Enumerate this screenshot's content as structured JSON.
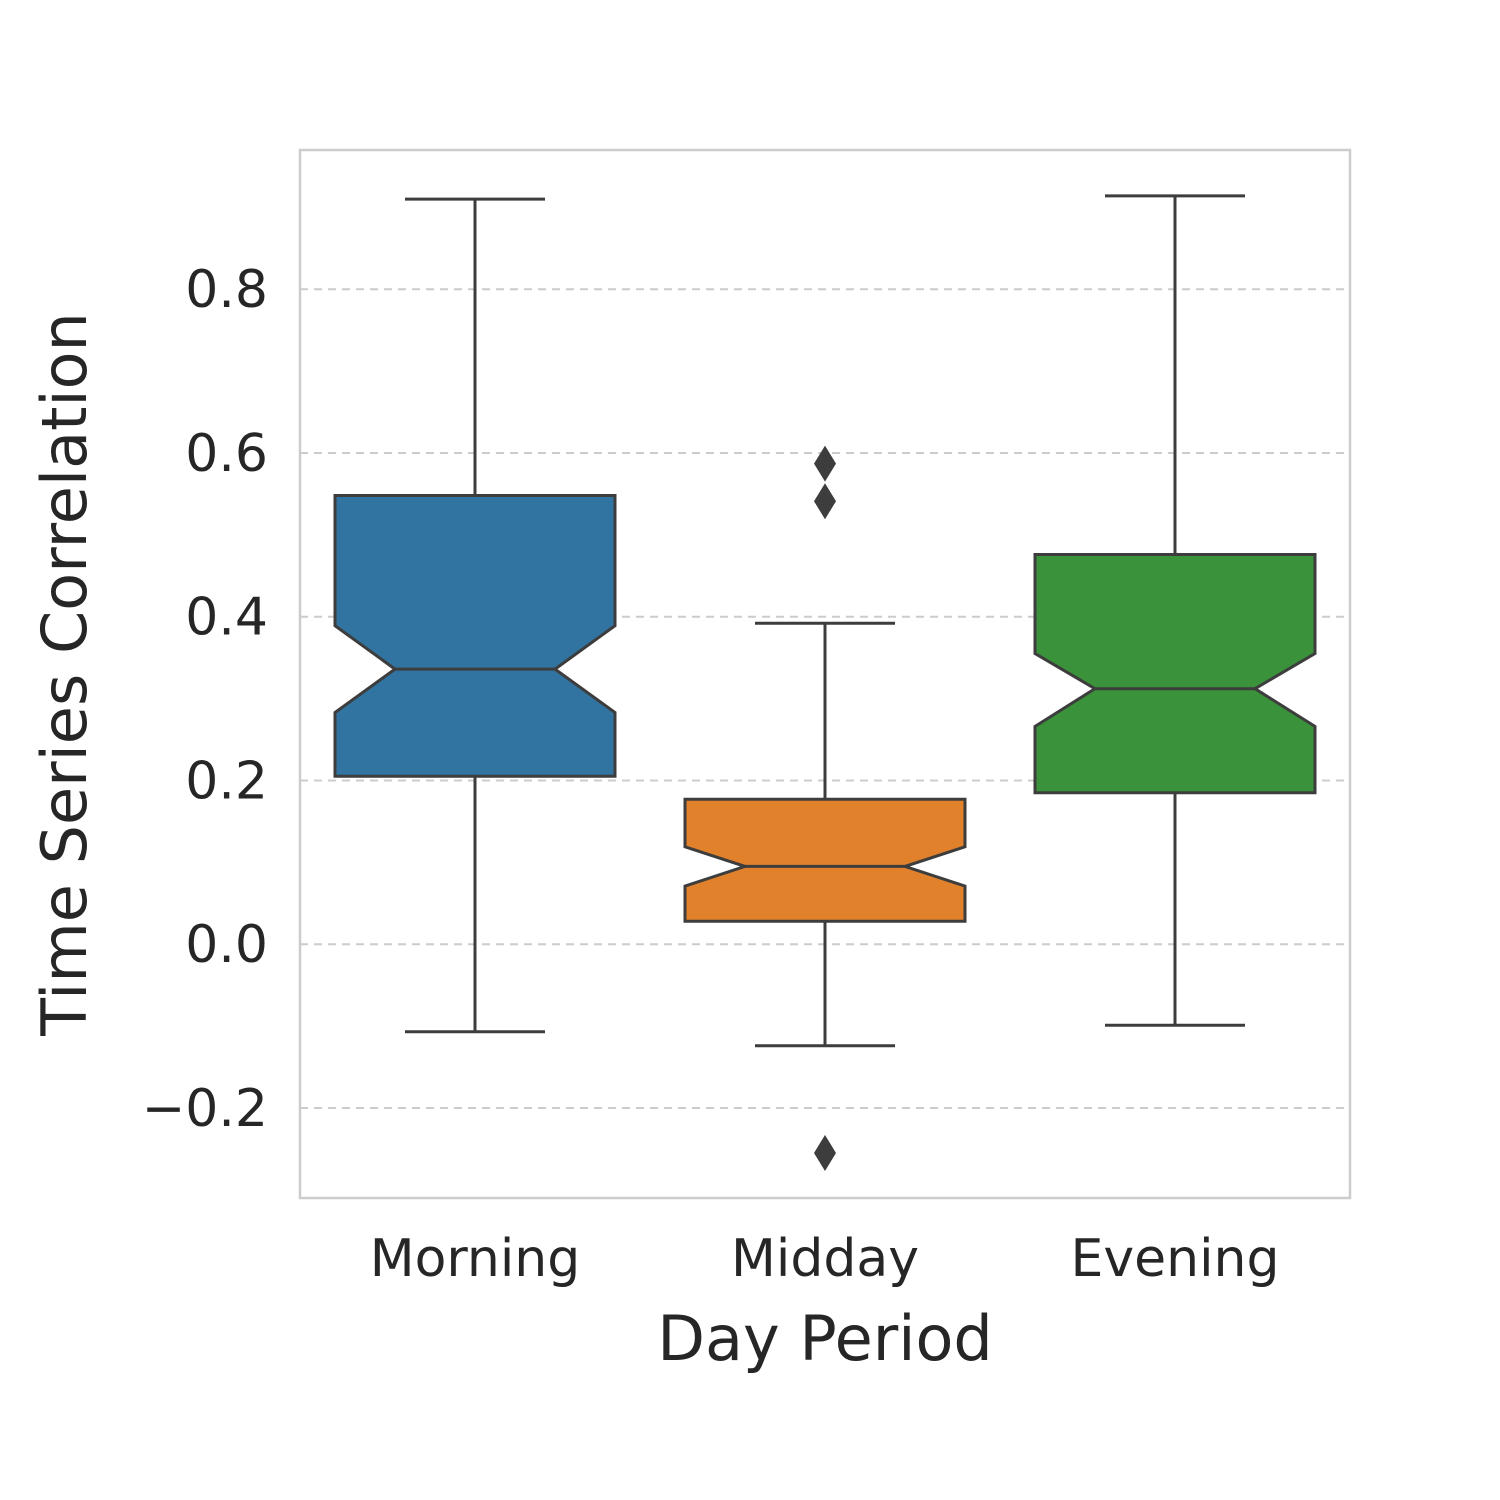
{
  "chart_data": {
    "type": "boxplot",
    "title": "",
    "xlabel": "Day Period",
    "ylabel": "Time Series Correlation",
    "categories": [
      "Morning",
      "Midday",
      "Evening"
    ],
    "ylim": [
      -0.31,
      0.97
    ],
    "yticks": [
      -0.2,
      0.0,
      0.2,
      0.4,
      0.6,
      0.8
    ],
    "ytick_labels": [
      "−0.2",
      "0.0",
      "0.2",
      "0.4",
      "0.6",
      "0.8"
    ],
    "grid": "horizontal-dashed",
    "notched": true,
    "series": [
      {
        "name": "Morning",
        "color": "#3274a1",
        "whisker_low": -0.107,
        "q1": 0.205,
        "median": 0.336,
        "q3": 0.548,
        "whisker_high": 0.91,
        "notch_low": 0.283,
        "notch_high": 0.389,
        "outliers": []
      },
      {
        "name": "Midday",
        "color": "#e1812c",
        "whisker_low": -0.124,
        "q1": 0.028,
        "median": 0.095,
        "q3": 0.177,
        "whisker_high": 0.392,
        "notch_low": 0.071,
        "notch_high": 0.119,
        "outliers": [
          -0.255,
          0.541,
          0.587
        ]
      },
      {
        "name": "Evening",
        "color": "#3a923a",
        "whisker_low": -0.099,
        "q1": 0.185,
        "median": 0.312,
        "q3": 0.476,
        "whisker_high": 0.914,
        "notch_low": 0.266,
        "notch_high": 0.355,
        "outliers": []
      }
    ]
  }
}
